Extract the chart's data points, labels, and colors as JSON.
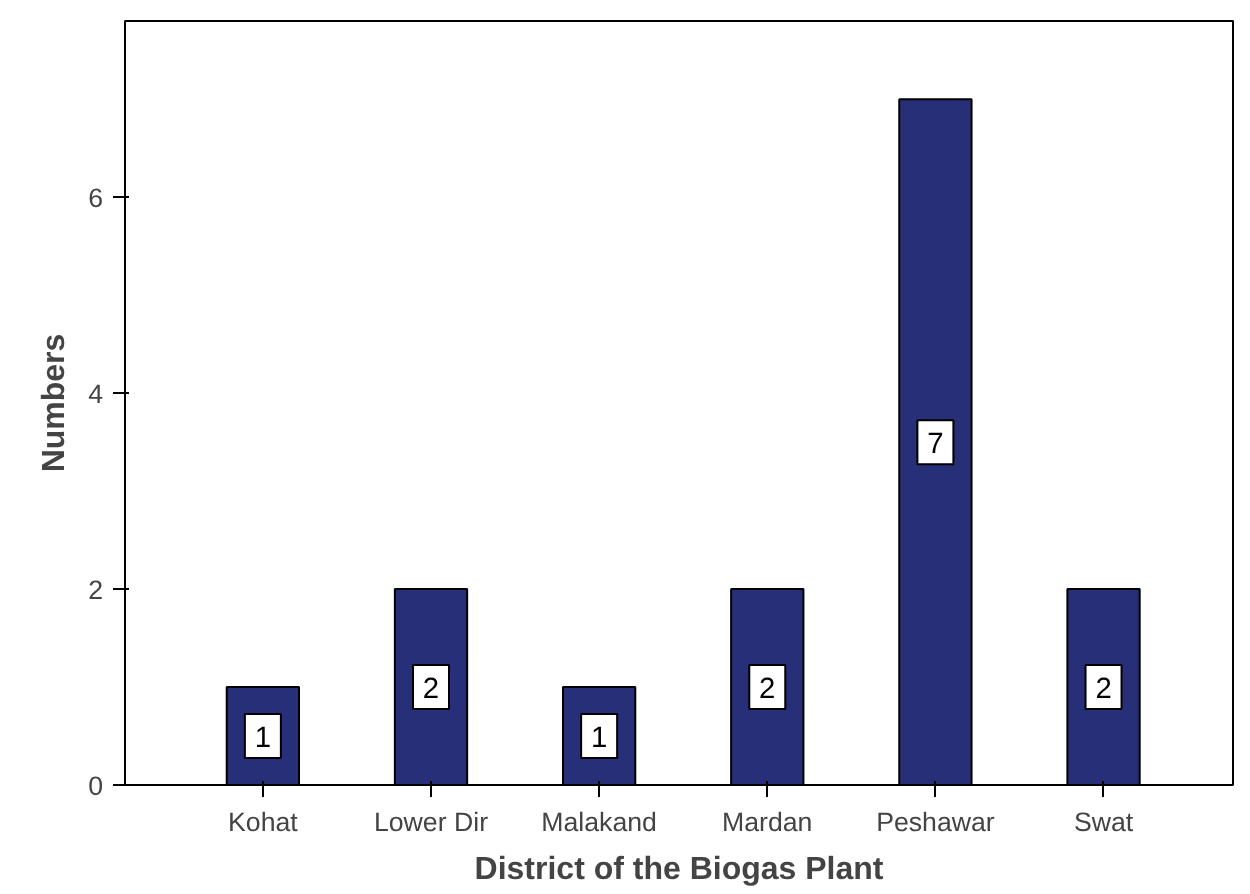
{
  "chart_data": {
    "type": "bar",
    "xlabel": "District of the Biogas Plant",
    "ylabel": "Numbers",
    "categories": [
      "Kohat",
      "Lower Dir",
      "Malakand",
      "Mardan",
      "Peshawar",
      "Swat"
    ],
    "values": [
      1,
      2,
      1,
      2,
      7,
      2
    ],
    "color": "#262f78",
    "ylim": [
      0,
      7.8
    ],
    "yticks": [
      0,
      2,
      4,
      6
    ],
    "grid": false,
    "data_labels": true
  }
}
